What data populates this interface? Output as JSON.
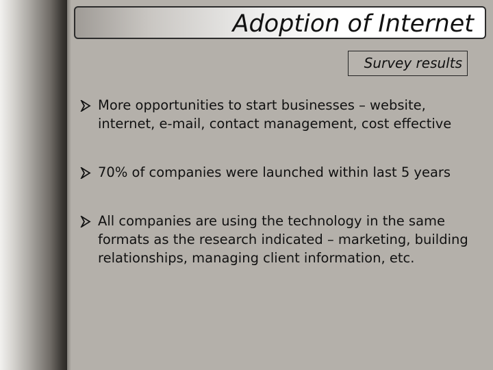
{
  "slide": {
    "title": "Adoption of Internet",
    "subtitle": "Survey results",
    "bullets": [
      {
        "icon": "arrow-bullet-icon",
        "text": "More opportunities to start businesses – website, internet, e-mail, contact management, cost effective"
      },
      {
        "icon": "arrow-bullet-icon",
        "text": "70% of companies were launched within last 5 years"
      },
      {
        "icon": "arrow-bullet-icon",
        "text": "All companies are using the technology in the same formats as the research indicated – marketing, building relationships, managing client information, etc."
      }
    ]
  },
  "colors": {
    "background": "#b4b0aa",
    "text": "#111111",
    "title_bar_border": "#2b2b2b",
    "subtitle_border": "#222222"
  }
}
